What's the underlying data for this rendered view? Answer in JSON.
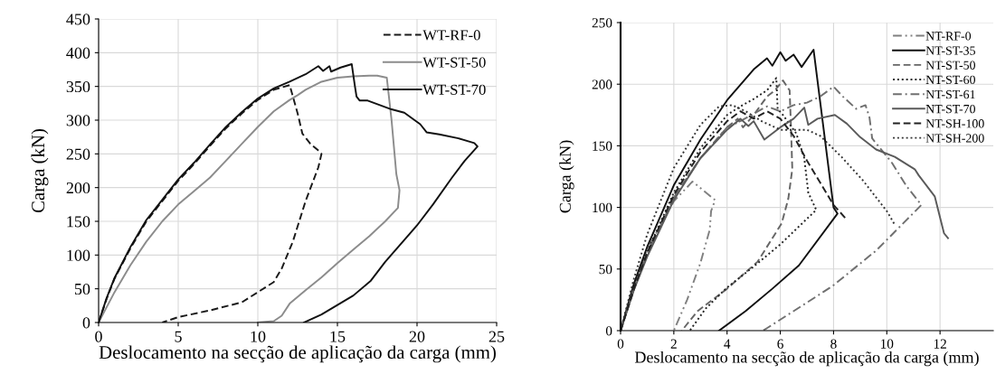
{
  "chart_data": [
    {
      "type": "line",
      "xlabel": "Deslocamento na secção de aplicação da carga (mm)",
      "ylabel": "Carga (kN)",
      "xlim": [
        0,
        25
      ],
      "ylim": [
        0,
        450
      ],
      "xticks": [
        0,
        5,
        10,
        15,
        20,
        25
      ],
      "yticks": [
        0,
        50,
        100,
        150,
        200,
        250,
        300,
        350,
        400,
        450
      ],
      "grid": true,
      "legend": "top right",
      "series": [
        {
          "name": "WT-RF-0",
          "color": "#1a1a1a",
          "line_style": "dashed",
          "x": [
            0,
            0.5,
            1,
            2,
            3,
            4,
            5,
            6,
            7,
            8,
            9,
            10,
            11,
            12,
            12.5,
            12.8,
            13.3,
            13.8,
            14,
            13.8,
            13,
            12.2,
            11.5,
            11,
            10,
            9,
            7,
            5,
            4
          ],
          "values": [
            0,
            35,
            65,
            110,
            150,
            180,
            210,
            235,
            262,
            288,
            310,
            330,
            345,
            352,
            310,
            280,
            265,
            255,
            250,
            230,
            180,
            120,
            80,
            60,
            45,
            30,
            18,
            8,
            0
          ]
        },
        {
          "name": "WT-ST-50",
          "color": "#8c8c8c",
          "line_style": "solid",
          "x": [
            0,
            1,
            2,
            3,
            4,
            5,
            6,
            7,
            8,
            9,
            10,
            11,
            12,
            12.5,
            13,
            14,
            15,
            16,
            17,
            17.5,
            18.1,
            18.4,
            18.7,
            18.9,
            18.8,
            18,
            17,
            16,
            15,
            14,
            13,
            12,
            11.5,
            11,
            10
          ],
          "values": [
            0,
            45,
            85,
            120,
            150,
            175,
            195,
            215,
            240,
            265,
            290,
            313,
            330,
            337,
            345,
            357,
            363,
            365,
            366,
            366,
            363,
            300,
            220,
            196,
            170,
            150,
            128,
            108,
            88,
            67,
            48,
            28,
            10,
            2,
            0
          ]
        },
        {
          "name": "WT-ST-70",
          "color": "#111111",
          "line_style": "solid",
          "x": [
            0,
            0.5,
            1,
            2,
            3,
            4,
            5,
            6,
            7,
            8,
            9,
            10,
            11,
            12,
            13,
            13.8,
            14.1,
            14.5,
            14.6,
            15.2,
            15.9,
            16.1,
            16.2,
            16.4,
            16.9,
            18.4,
            19.2,
            20.2,
            20.6,
            21.4,
            22.6,
            23.6,
            23.8,
            23,
            22.2,
            21,
            20,
            18,
            17.1,
            16,
            14,
            12.9
          ],
          "values": [
            0,
            36,
            66,
            112,
            152,
            182,
            212,
            237,
            264,
            290,
            312,
            332,
            347,
            357,
            368,
            380,
            373,
            380,
            372,
            378,
            383,
            350,
            335,
            329,
            329,
            316,
            311,
            294,
            282,
            279,
            273,
            266,
            261,
            240,
            215,
            175,
            144,
            90,
            62,
            40,
            12,
            0
          ]
        }
      ]
    },
    {
      "type": "line",
      "xlabel": "Deslocamento na secção de aplicação da carga (mm)",
      "ylabel": "Carga (kN)",
      "xlim": [
        0,
        14
      ],
      "ylim": [
        0,
        250
      ],
      "xticks": [
        0,
        2,
        4,
        6,
        8,
        10,
        12
      ],
      "yticks": [
        0,
        50,
        100,
        150,
        200,
        250
      ],
      "grid": true,
      "legend": "top right",
      "series": [
        {
          "name": "NT-RF-0",
          "color": "#808080",
          "line_style": "dashdotdot",
          "x": [
            0,
            0.5,
            1,
            2,
            2.7,
            3.55,
            3.4,
            3.35,
            3,
            2.5,
            2.0
          ],
          "values": [
            0,
            36,
            66,
            105,
            121,
            106,
            97,
            82,
            55,
            25,
            0
          ]
        },
        {
          "name": "NT-ST-35",
          "color": "#111111",
          "line_style": "solid",
          "x": [
            0,
            0.5,
            1,
            2,
            3,
            4,
            5,
            5.5,
            5.7,
            6,
            6.2,
            6.5,
            6.8,
            7.25,
            8.0,
            8.15,
            6.7,
            5.7,
            4.7,
            3.7
          ],
          "values": [
            0,
            38,
            68,
            118,
            155,
            187,
            212,
            221,
            215,
            226,
            219,
            224,
            214,
            228,
            100,
            95,
            53,
            34,
            16,
            0
          ]
        },
        {
          "name": "NT-ST-50",
          "color": "#666666",
          "line_style": "dashed",
          "x": [
            0,
            0.5,
            1,
            2,
            3,
            4,
            4.4,
            4.6,
            5,
            5.5,
            5.8,
            6.1,
            6.35,
            6.4,
            6.45,
            6.3,
            6.05,
            5.15,
            4.0,
            2.9,
            2.3
          ],
          "values": [
            0,
            33,
            62,
            108,
            140,
            165,
            172,
            165,
            175,
            190,
            195,
            203,
            195,
            166,
            131,
            107,
            87,
            56,
            34,
            16,
            0
          ]
        },
        {
          "name": "NT-ST-60",
          "color": "#222222",
          "line_style": "dotted",
          "x": [
            0,
            0.5,
            1,
            2,
            3,
            4,
            4.5,
            5,
            5.5,
            5.85,
            5.9,
            6.1,
            6.6,
            6.9,
            7.05,
            7.35,
            6,
            5,
            4,
            3.2,
            2.6
          ],
          "values": [
            0,
            35,
            64,
            112,
            148,
            175,
            182,
            188,
            195,
            205,
            180,
            175,
            160,
            140,
            112,
            98,
            70,
            52,
            35,
            18,
            0
          ]
        },
        {
          "name": "NT-ST-61",
          "color": "#707070",
          "line_style": "dashdot",
          "x": [
            0,
            0.5,
            1,
            2,
            3,
            4,
            4.5,
            5,
            5.5,
            6,
            6.5,
            7,
            7.5,
            8,
            8.35,
            8.85,
            9.2,
            9.35,
            9.45,
            10.2,
            10.75,
            11.3,
            9.6,
            7.95,
            5.5,
            5.35
          ],
          "values": [
            0,
            34,
            62,
            108,
            140,
            165,
            170,
            176,
            182,
            178,
            183,
            185,
            190,
            198,
            190,
            180,
            183,
            173,
            156,
            136,
            117,
            102,
            65,
            36,
            2,
            0
          ]
        },
        {
          "name": "NT-ST-70",
          "color": "#5a5a5a",
          "line_style": "solid",
          "x": [
            0,
            0.5,
            1,
            2,
            3,
            4,
            4.5,
            4.8,
            5,
            5.4,
            6,
            6.5,
            6.9,
            7.05,
            7.4,
            8.05,
            8.5,
            9,
            9.6,
            10.3,
            11.05,
            11.2,
            11.8,
            12.15,
            12.3
          ],
          "values": [
            0,
            33,
            60,
            106,
            140,
            163,
            172,
            166,
            170,
            155,
            165,
            172,
            181,
            167,
            172,
            175,
            168,
            157,
            147,
            141,
            131,
            126,
            109,
            79,
            75
          ]
        },
        {
          "name": "NT-SH-100",
          "color": "#222222",
          "line_style": "dashed",
          "x": [
            0,
            0.5,
            1,
            2,
            3,
            4,
            4.5,
            5,
            5.5,
            6,
            6.5,
            7,
            7.5,
            8,
            8.5
          ],
          "values": [
            0,
            34,
            63,
            110,
            145,
            170,
            178,
            172,
            178,
            172,
            158,
            138,
            120,
            102,
            90
          ]
        },
        {
          "name": "NT-SH-200",
          "color": "#333333",
          "line_style": "dotted",
          "x": [
            0,
            0.5,
            1,
            2,
            3,
            3.7,
            4.2,
            4.7,
            5.3,
            6,
            7,
            7.5,
            8.3,
            9.1,
            10,
            10.3
          ],
          "values": [
            0,
            42,
            78,
            132,
            167,
            182,
            183,
            178,
            170,
            163,
            163,
            158,
            141,
            122,
            97,
            86
          ]
        }
      ]
    }
  ]
}
